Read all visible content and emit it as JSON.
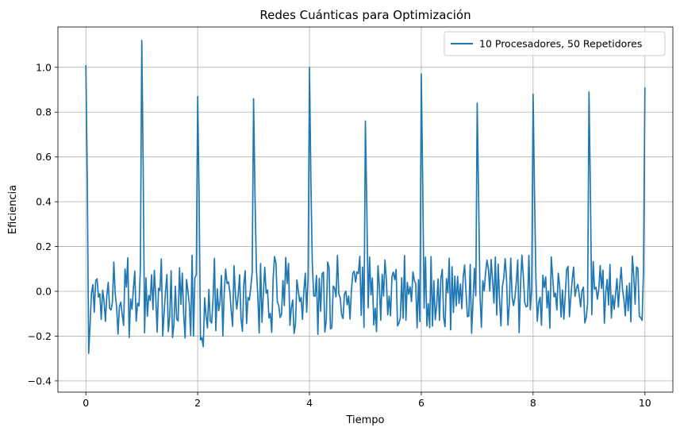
{
  "chart_data": {
    "type": "line",
    "title": "Redes Cuánticas para Optimización",
    "xlabel": "Tiempo",
    "ylabel": "Eficiencia",
    "xlim": [
      -0.5,
      10.5
    ],
    "ylim": [
      -0.45,
      1.18
    ],
    "xticks": [
      0,
      2,
      4,
      6,
      8,
      10
    ],
    "yticks": [
      -0.4,
      -0.2,
      0.0,
      0.2,
      0.4,
      0.6,
      0.8,
      1.0
    ],
    "ytick_labels": [
      "−0.4",
      "−0.2",
      "0.0",
      "0.2",
      "0.4",
      "0.6",
      "0.8",
      "1.0"
    ],
    "grid": true,
    "legend_position": "top-right",
    "series": [
      {
        "name": "10 Procesadores, 50 Repetidores",
        "color": "#1f77b4",
        "peaks": [
          {
            "x": 0.0,
            "y": 1.01
          },
          {
            "x": 1.0,
            "y": 1.12
          },
          {
            "x": 2.0,
            "y": 0.87
          },
          {
            "x": 3.0,
            "y": 0.86
          },
          {
            "x": 4.0,
            "y": 1.0
          },
          {
            "x": 5.0,
            "y": 0.76
          },
          {
            "x": 6.0,
            "y": 0.97
          },
          {
            "x": 7.0,
            "y": 0.84
          },
          {
            "x": 8.0,
            "y": 0.88
          },
          {
            "x": 9.0,
            "y": 0.89
          },
          {
            "x": 10.0,
            "y": 0.91
          }
        ],
        "noise_range": [
          -0.37,
          0.23
        ],
        "x": [
          0.0,
          0.025,
          0.05,
          0.075,
          0.1,
          0.125,
          0.15,
          0.175,
          0.2,
          0.225,
          0.25,
          0.275,
          0.3,
          0.325,
          0.35,
          0.375,
          0.4,
          0.425,
          0.45,
          0.475,
          0.5,
          0.525,
          0.55,
          0.575,
          0.6,
          0.625,
          0.65,
          0.675,
          0.7,
          0.725,
          0.75,
          0.775,
          0.8,
          0.825,
          0.85,
          0.875,
          0.9,
          0.925,
          0.95,
          0.975,
          1.0,
          1.025,
          1.05,
          1.075,
          1.1,
          1.125,
          1.15,
          1.175,
          1.2,
          1.225,
          1.25,
          1.275,
          1.3,
          1.325,
          1.35,
          1.375,
          1.4,
          1.425,
          1.45,
          1.475,
          1.5,
          1.525,
          1.55,
          1.575,
          1.6,
          1.625,
          1.65,
          1.675,
          1.7,
          1.725,
          1.75,
          1.775,
          1.8,
          1.825,
          1.85,
          1.875,
          1.9,
          1.925,
          1.95,
          1.975,
          2.0,
          2.025,
          2.05,
          2.075,
          2.1,
          2.125,
          2.15,
          2.175,
          2.2,
          2.225,
          2.25,
          2.275,
          2.3,
          2.325,
          2.35,
          2.375,
          2.4,
          2.425,
          2.45,
          2.475,
          2.5,
          2.525,
          2.55,
          2.575,
          2.6,
          2.625,
          2.65,
          2.675,
          2.7,
          2.725,
          2.75,
          2.775,
          2.8,
          2.825,
          2.85,
          2.875,
          2.9,
          2.925,
          2.95,
          2.975,
          3.0,
          3.025,
          3.05,
          3.075,
          3.1,
          3.125,
          3.15,
          3.175,
          3.2,
          3.225,
          3.25,
          3.275,
          3.3,
          3.325,
          3.35,
          3.375,
          3.4,
          3.425,
          3.45,
          3.475,
          3.5,
          3.525,
          3.55,
          3.575,
          3.6,
          3.625,
          3.65,
          3.675,
          3.7,
          3.725,
          3.75,
          3.775,
          3.8,
          3.825,
          3.85,
          3.875,
          3.9,
          3.925,
          3.95,
          3.975,
          4.0,
          4.025,
          4.05,
          4.075,
          4.1,
          4.125,
          4.15,
          4.175,
          4.2,
          4.225,
          4.25,
          4.275,
          4.3,
          4.325,
          4.35,
          4.375,
          4.4,
          4.425,
          4.45,
          4.475,
          4.5,
          4.525,
          4.55,
          4.575,
          4.6,
          4.625,
          4.65,
          4.675,
          4.7,
          4.725,
          4.75,
          4.775,
          4.8,
          4.825,
          4.85,
          4.875,
          4.9,
          4.925,
          4.95,
          4.975,
          5.0,
          5.025,
          5.05,
          5.075,
          5.1,
          5.125,
          5.15,
          5.175,
          5.2,
          5.225,
          5.25,
          5.275,
          5.3,
          5.325,
          5.35,
          5.375,
          5.4,
          5.425,
          5.45,
          5.475,
          5.5,
          5.525,
          5.55,
          5.575,
          5.6,
          5.625,
          5.65,
          5.675,
          5.7,
          5.725,
          5.75,
          5.775,
          5.8,
          5.825,
          5.85,
          5.875,
          5.9,
          5.925,
          5.95,
          5.975,
          6.0,
          6.025,
          6.05,
          6.075,
          6.1,
          6.125,
          6.15,
          6.175,
          6.2,
          6.225,
          6.25,
          6.275,
          6.3,
          6.325,
          6.35,
          6.375,
          6.4,
          6.425,
          6.45,
          6.475,
          6.5,
          6.525,
          6.55,
          6.575,
          6.6,
          6.625,
          6.65,
          6.675,
          6.7,
          6.725,
          6.75,
          6.775,
          6.8,
          6.825,
          6.85,
          6.875,
          6.9,
          6.925,
          6.95,
          6.975,
          7.0,
          7.025,
          7.05,
          7.075,
          7.1,
          7.125,
          7.15,
          7.175,
          7.2,
          7.225,
          7.25,
          7.275,
          7.3,
          7.325,
          7.35,
          7.375,
          7.4,
          7.425,
          7.45,
          7.475,
          7.5,
          7.525,
          7.55,
          7.575,
          7.6,
          7.625,
          7.65,
          7.675,
          7.7,
          7.725,
          7.75,
          7.775,
          7.8,
          7.825,
          7.85,
          7.875,
          7.9,
          7.925,
          7.95,
          7.975,
          8.0,
          8.025,
          8.05,
          8.075,
          8.1,
          8.125,
          8.15,
          8.175,
          8.2,
          8.225,
          8.25,
          8.275,
          8.3,
          8.325,
          8.35,
          8.375,
          8.4,
          8.425,
          8.45,
          8.475,
          8.5,
          8.525,
          8.55,
          8.575,
          8.6,
          8.625,
          8.65,
          8.675,
          8.7,
          8.725,
          8.75,
          8.775,
          8.8,
          8.825,
          8.85,
          8.875,
          8.9,
          8.925,
          8.95,
          8.975,
          9.0,
          9.025,
          9.05,
          9.075,
          9.1,
          9.125,
          9.15,
          9.175,
          9.2,
          9.225,
          9.25,
          9.275,
          9.3,
          9.325,
          9.35,
          9.375,
          9.4,
          9.425,
          9.45,
          9.475,
          9.5,
          9.525,
          9.55,
          9.575,
          9.6,
          9.625,
          9.65,
          9.675,
          9.7,
          9.725,
          9.75,
          9.775,
          9.8,
          9.825,
          9.85,
          9.875,
          9.9,
          9.925,
          9.95,
          9.975,
          10.0
        ],
        "y": [
          1.01,
          0.5,
          -0.277,
          -0.15,
          -0.009,
          0.03,
          -0.093,
          0.047,
          0.056,
          -0.026,
          -0.011,
          -0.125,
          0.005,
          -0.043,
          -0.134,
          -0.018,
          0.04,
          -0.076,
          -0.083,
          -0.049,
          0.131,
          -0.011,
          -0.069,
          -0.191,
          -0.067,
          -0.048,
          -0.105,
          -0.152,
          0.1,
          0.019,
          0.15,
          -0.205,
          -0.034,
          -0.08,
          0.011,
          0.09,
          -0.133,
          -0.053,
          -0.065,
          0.101,
          1.12,
          0.56,
          -0.185,
          0.06,
          -0.111,
          -0.018,
          -0.041,
          0.074,
          -0.082,
          0.094,
          -0.026,
          -0.182,
          0.014,
          0.004,
          0.145,
          -0.2,
          -0.095,
          0.0,
          0.075,
          -0.18,
          -0.111,
          0.092,
          -0.206,
          -0.15,
          0.023,
          -0.124,
          -0.133,
          0.105,
          -0.058,
          0.081,
          -0.104,
          -0.208,
          0.053,
          0.003,
          -0.056,
          -0.197,
          0.161,
          -0.2,
          0.06,
          0.074,
          0.87,
          0.435,
          -0.217,
          -0.207,
          -0.247,
          -0.029,
          -0.111,
          -0.163,
          0.009,
          -0.133,
          -0.141,
          -0.035,
          0.147,
          -0.176,
          0.011,
          -0.087,
          -0.047,
          0.071,
          -0.199,
          -0.008,
          0.1,
          0.035,
          0.042,
          -0.002,
          -0.087,
          -0.156,
          0.114,
          -0.015,
          -0.079,
          -0.017,
          0.074,
          -0.121,
          -0.178,
          0.028,
          0.092,
          -0.144,
          -0.027,
          -0.039,
          0.02,
          0.084,
          0.86,
          0.43,
          0.105,
          -0.016,
          -0.186,
          0.124,
          -0.138,
          -0.008,
          0.107,
          -0.008,
          0.006,
          -0.119,
          -0.099,
          -0.183,
          0.057,
          0.155,
          0.126,
          -0.047,
          -0.063,
          -0.117,
          -0.102,
          0.048,
          -0.064,
          0.151,
          0.035,
          0.125,
          -0.152,
          -0.074,
          -0.039,
          -0.188,
          -0.144,
          0.051,
          0.002,
          -0.046,
          -0.027,
          -0.125,
          0.004,
          0.081,
          -0.093,
          0.065,
          1.0,
          0.5,
          0.129,
          -0.02,
          -0.022,
          0.071,
          -0.192,
          0.058,
          -0.089,
          0.078,
          0.086,
          -0.182,
          -0.131,
          0.131,
          0.107,
          -0.168,
          -0.163,
          0.024,
          0.014,
          -0.025,
          0.16,
          -0.012,
          -0.03,
          -0.104,
          -0.121,
          -0.013,
          0.001,
          -0.06,
          -0.021,
          -0.124,
          0.004,
          0.08,
          0.09,
          0.041,
          0.087,
          0.08,
          0.156,
          -0.107,
          0.108,
          -0.161,
          0.76,
          0.38,
          -0.074,
          0.153,
          -0.016,
          0.06,
          -0.15,
          -0.075,
          -0.18,
          0.114,
          0.025,
          -0.129,
          0.076,
          -0.021,
          0.14,
          0.052,
          -0.105,
          -0.021,
          -0.109,
          0.065,
          0.086,
          0.052,
          0.098,
          -0.154,
          -0.142,
          -0.119,
          0.061,
          -0.12,
          0.16,
          -0.129,
          0.04,
          -0.013,
          0.02,
          -0.046,
          0.087,
          0.049,
          0.034,
          -0.163,
          0.052,
          -0.135,
          0.97,
          0.485,
          -0.075,
          0.153,
          -0.155,
          -0.055,
          -0.162,
          0.155,
          -0.155,
          0.048,
          -0.127,
          -0.063,
          0.055,
          -0.129,
          0.058,
          0.098,
          -0.118,
          -0.158,
          0.057,
          -0.007,
          0.148,
          -0.172,
          0.11,
          -0.094,
          0.068,
          -0.065,
          0.067,
          -0.054,
          0.033,
          -0.077,
          0.065,
          0.117,
          -0.004,
          -0.113,
          -0.11,
          0.12,
          -0.187,
          -0.047,
          0.103,
          -0.02,
          0.84,
          0.42,
          -0.016,
          -0.161,
          0.047,
          0.002,
          0.084,
          0.139,
          0.101,
          0.001,
          0.142,
          0.048,
          -0.052,
          0.153,
          -0.106,
          0.121,
          -0.036,
          -0.154,
          0.021,
          0.059,
          0.146,
          0.054,
          -0.151,
          -0.053,
          0.148,
          -0.024,
          -0.064,
          -0.026,
          0.042,
          0.14,
          -0.184,
          0.029,
          0.162,
          0.069,
          -0.05,
          -0.069,
          -0.065,
          0.161,
          -0.082,
          0.008,
          0.88,
          0.44,
          0.056,
          -0.133,
          -0.049,
          -0.026,
          -0.151,
          0.072,
          0.017,
          0.064,
          -0.074,
          0.001,
          -0.164,
          0.154,
          0.062,
          -0.025,
          -0.008,
          -0.083,
          0.081,
          0.025,
          -0.114,
          0.006,
          -0.124,
          -0.018,
          0.097,
          0.111,
          -0.113,
          -0.026,
          0.052,
          0.108,
          -0.022,
          0.013,
          0.031,
          -0.014,
          -0.069,
          0.003,
          0.019,
          -0.141,
          -0.118,
          -0.055,
          0.89,
          0.445,
          -0.104,
          0.133,
          0.01,
          0.018,
          -0.035,
          0.009,
          0.115,
          0.013,
          0.095,
          -0.142,
          -0.005,
          0.053,
          -0.061,
          0.12,
          -0.119,
          -0.017,
          -0.08,
          -0.013,
          0.057,
          -0.07,
          0.025,
          0.107,
          0.006,
          -0.037,
          -0.109,
          0.025,
          -0.087,
          0.037,
          -0.136,
          0.157,
          0.073,
          -0.057,
          0.109,
          0.102,
          -0.112,
          -0.117,
          -0.13,
          0.092,
          0.91
        ]
      }
    ]
  }
}
